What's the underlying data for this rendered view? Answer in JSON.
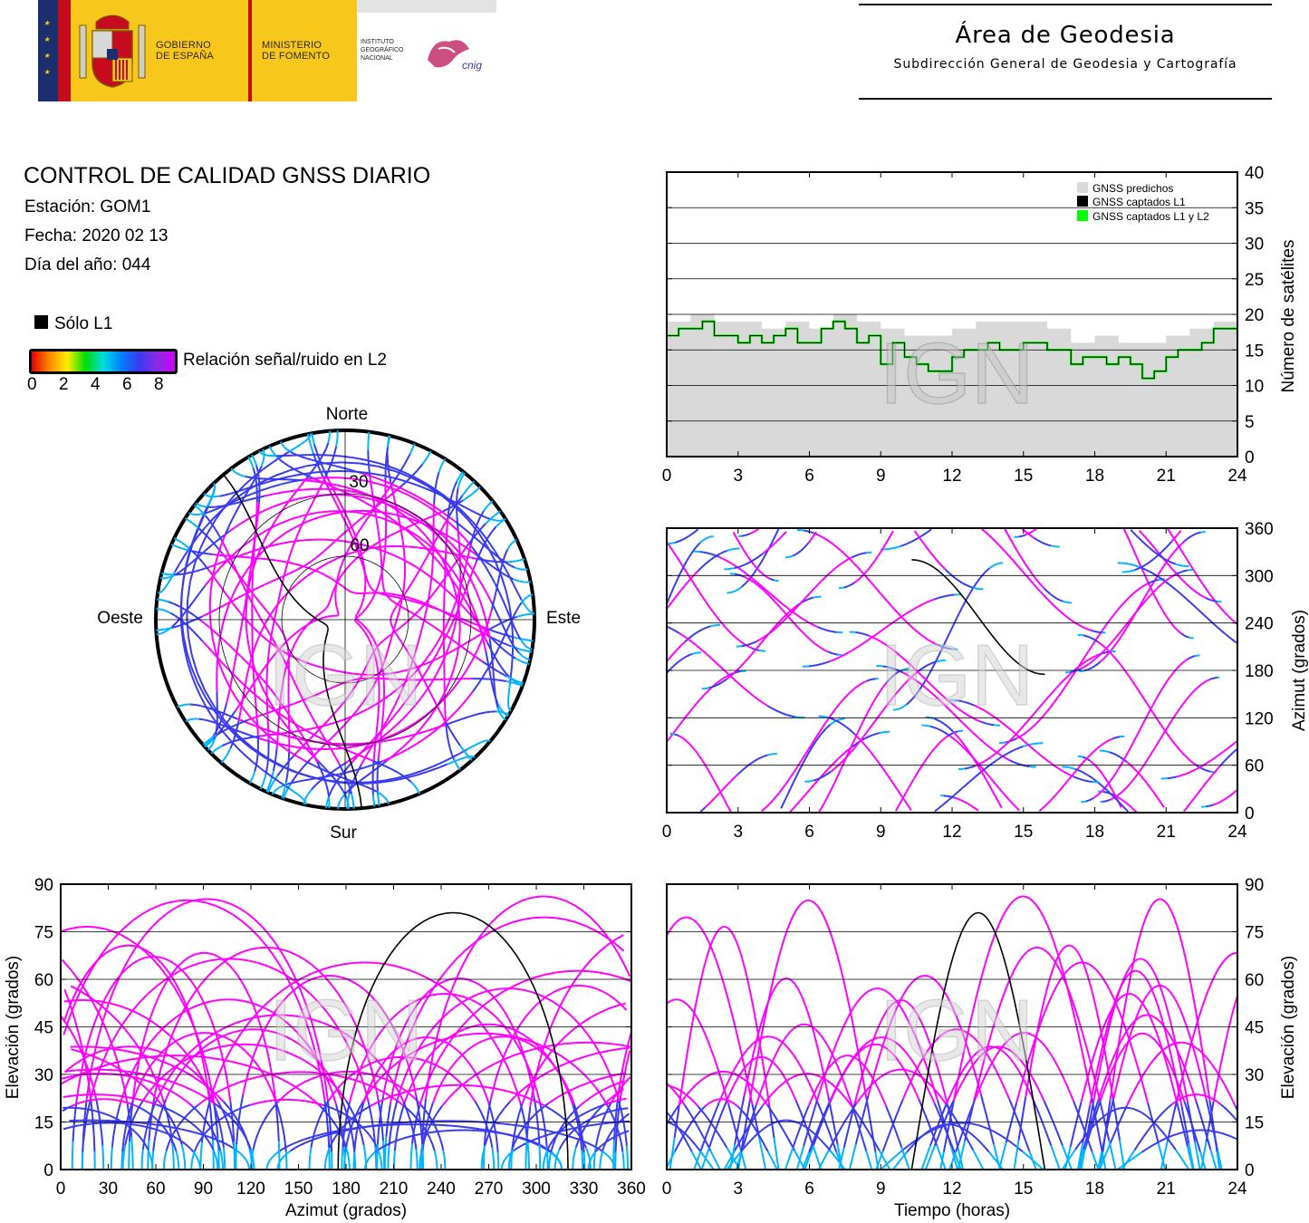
{
  "header": {
    "gov_line1": "GOBIERNO",
    "gov_line2": "DE ESPAÑA",
    "min_line1": "MINISTERIO",
    "min_line2": "DE FOMENTO",
    "inst_line1": "INSTITUTO",
    "inst_line2": "GEOGRÁFICO",
    "inst_line3": "NACIONAL",
    "cnig": "cnig",
    "area_title": "Área de Geodesia",
    "area_subtitle": "Subdirección General de Geodesia y Cartografía"
  },
  "info": {
    "title": "CONTROL DE CALIDAD GNSS DIARIO",
    "station": "Estación: GOM1",
    "date": "Fecha: 2020 02 13",
    "doy": "Día del año: 044"
  },
  "legend": {
    "l1_only": "Sólo L1",
    "snr_label": "Relación señal/ruido en L2",
    "ticks": [
      "0",
      "2",
      "4",
      "6",
      "8"
    ]
  },
  "watermark": "IGN",
  "colors": {
    "snr_high": "#ff00ff",
    "snr_mid": "#3a3af0",
    "snr_low": "#00b4ff",
    "l1_only": "#000000",
    "predicted": "#d9d9d9",
    "captured_l1l2": "#00ff00"
  },
  "chart_data": [
    {
      "type": "scatter",
      "name": "skyplot",
      "labels": {
        "north": "Norte",
        "south": "Sur",
        "east": "Este",
        "west": "Oeste"
      },
      "rings": [
        "30",
        "60"
      ],
      "ring_elevations": [
        30,
        60
      ]
    },
    {
      "type": "area",
      "name": "satellites",
      "ylabel": "Número de satélites",
      "xlim": [
        0,
        24
      ],
      "ylim": [
        0,
        40
      ],
      "xticks": [
        0,
        3,
        6,
        9,
        12,
        15,
        18,
        21,
        24
      ],
      "yticks": [
        0,
        5,
        10,
        15,
        20,
        25,
        30,
        35,
        40
      ],
      "legend": [
        "GNSS predichos",
        "GNSS captados L1",
        "GNSS captados L1 y L2"
      ],
      "legend_position": "top-right",
      "series": [
        {
          "name": "GNSS predichos",
          "x": [
            0,
            1,
            2,
            3,
            4,
            5,
            6,
            7,
            8,
            9,
            10,
            11,
            12,
            13,
            14,
            15,
            16,
            17,
            18,
            19,
            20,
            21,
            22,
            23,
            24
          ],
          "values": [
            19,
            20,
            19,
            19,
            18,
            19,
            18,
            20,
            19,
            18,
            17,
            17,
            18,
            19,
            19,
            19,
            18,
            16,
            17,
            16,
            16,
            17,
            18,
            19,
            20
          ]
        },
        {
          "name": "GNSS captados L1 y L2",
          "x": [
            0,
            0.5,
            1,
            1.5,
            2,
            2.5,
            3,
            3.5,
            4,
            4.5,
            5,
            5.5,
            6,
            6.5,
            7,
            7.5,
            8,
            8.5,
            9,
            9.5,
            10,
            10.5,
            11,
            11.5,
            12,
            12.5,
            13,
            13.5,
            14,
            14.5,
            15,
            15.5,
            16,
            16.5,
            17,
            17.5,
            18,
            18.5,
            19,
            19.5,
            20,
            20.5,
            21,
            21.5,
            22,
            22.5,
            23,
            23.5,
            24
          ],
          "values": [
            17,
            18,
            18,
            19,
            17,
            17,
            16,
            17,
            16,
            17,
            18,
            16,
            16,
            18,
            19,
            18,
            16,
            17,
            13,
            16,
            14,
            13,
            12,
            12,
            14,
            15,
            15,
            16,
            15,
            15,
            16,
            16,
            15,
            15,
            13,
            14,
            14,
            13,
            14,
            13,
            11,
            12,
            14,
            15,
            15,
            16,
            18,
            18,
            17
          ]
        }
      ]
    },
    {
      "type": "scatter",
      "name": "azimuth_vs_time",
      "ylabel": "Azimut (grados)",
      "xlim": [
        0,
        24
      ],
      "ylim": [
        0,
        360
      ],
      "xticks": [
        0,
        3,
        6,
        9,
        12,
        15,
        18,
        21,
        24
      ],
      "yticks": [
        0,
        60,
        120,
        180,
        240,
        300,
        360
      ]
    },
    {
      "type": "scatter",
      "name": "elevation_vs_azimuth",
      "xlabel": "Azimut (grados)",
      "ylabel": "Elevación (grados)",
      "xlim": [
        0,
        360
      ],
      "ylim": [
        0,
        90
      ],
      "xticks": [
        0,
        30,
        60,
        90,
        120,
        150,
        180,
        210,
        240,
        270,
        300,
        330,
        360
      ],
      "yticks": [
        0,
        15,
        30,
        45,
        60,
        75,
        90
      ]
    },
    {
      "type": "scatter",
      "name": "elevation_vs_time",
      "xlabel": "Tiempo (horas)",
      "ylabel": "Elevación (grados)",
      "xlim": [
        0,
        24
      ],
      "ylim": [
        0,
        90
      ],
      "xticks": [
        0,
        3,
        6,
        9,
        12,
        15,
        18,
        21,
        24
      ],
      "yticks": [
        0,
        15,
        30,
        45,
        60,
        75,
        90
      ]
    }
  ]
}
